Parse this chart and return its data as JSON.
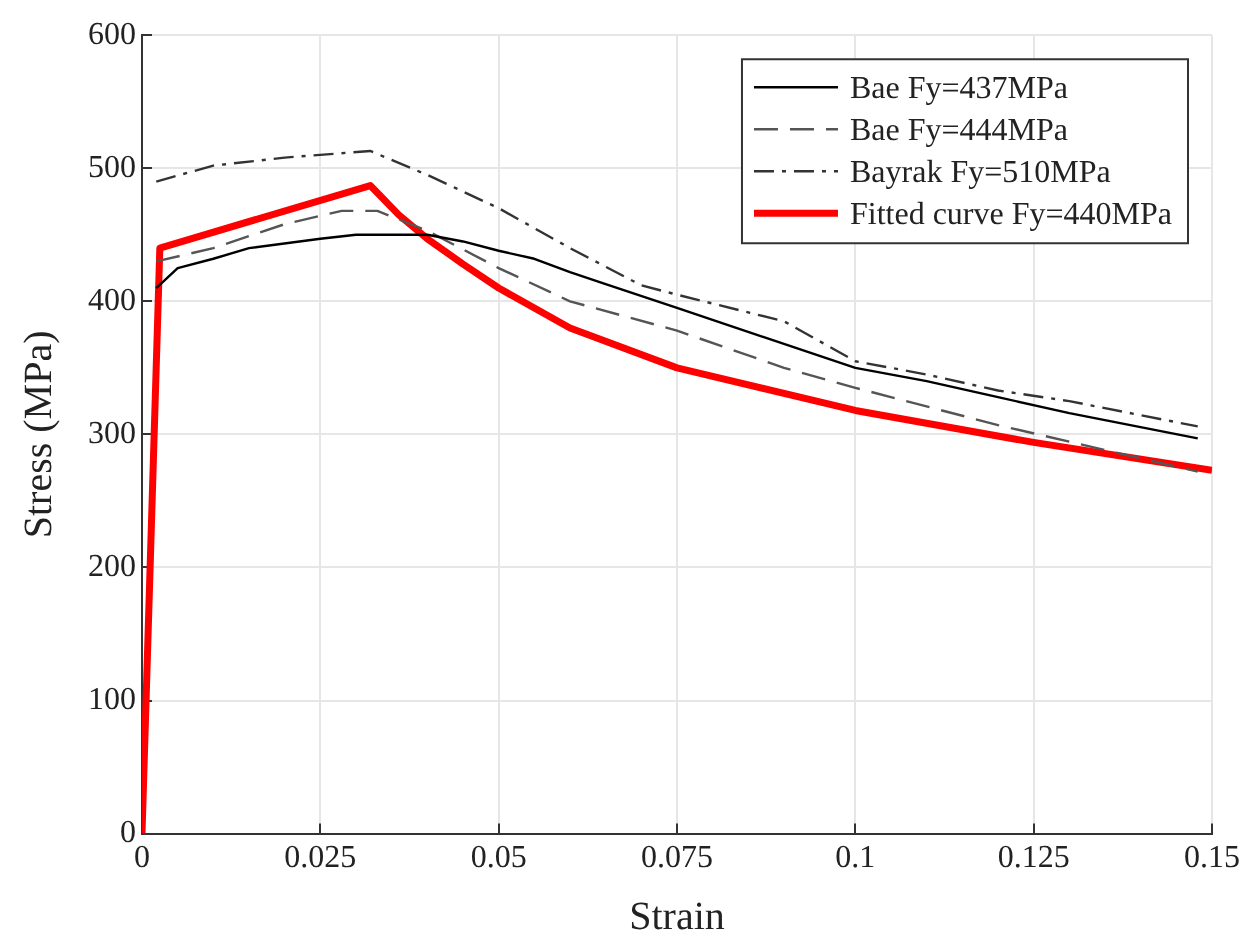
{
  "chart_data": {
    "type": "line",
    "xlabel": "Strain",
    "ylabel": "Stress (MPa)",
    "xlim": [
      0,
      0.15
    ],
    "xticks": [
      0,
      0.025,
      0.05,
      0.075,
      0.1,
      0.125,
      0.15
    ],
    "ylim": [
      0,
      600
    ],
    "yticks": [
      0,
      100,
      200,
      300,
      400,
      500,
      600
    ],
    "grid": true,
    "legend": "top right",
    "marker": "none",
    "series": [
      {
        "name": "Bae Fy=437MPa",
        "color": "#000000",
        "line_style": "solid",
        "x": [
          0.002,
          0.005,
          0.01,
          0.015,
          0.025,
          0.03,
          0.04,
          0.045,
          0.05,
          0.055,
          0.06,
          0.065,
          0.075,
          0.1,
          0.11,
          0.12,
          0.13,
          0.148
        ],
        "values": [
          410,
          425,
          432,
          440,
          447,
          450,
          450,
          445,
          438,
          432,
          422,
          413,
          395,
          350,
          340,
          328,
          316,
          297
        ]
      },
      {
        "name": "Bae Fy=444MPa",
        "color": "#555555",
        "line_style": "dashed",
        "x": [
          0.002,
          0.01,
          0.02,
          0.028,
          0.033,
          0.04,
          0.05,
          0.06,
          0.075,
          0.09,
          0.1,
          0.12,
          0.148
        ],
        "values": [
          430,
          440,
          458,
          468,
          468,
          453,
          425,
          400,
          378,
          350,
          335,
          307,
          272
        ]
      },
      {
        "name": "Bayrak Fy=510MPa",
        "color": "#333333",
        "line_style": "dashdot",
        "x": [
          0.002,
          0.01,
          0.02,
          0.032,
          0.04,
          0.05,
          0.06,
          0.07,
          0.075,
          0.09,
          0.1,
          0.11,
          0.12,
          0.13,
          0.148
        ],
        "values": [
          490,
          502,
          508,
          513,
          495,
          470,
          440,
          412,
          405,
          385,
          355,
          345,
          333,
          325,
          306
        ]
      },
      {
        "name": "Fitted curve Fy=440MPa",
        "color": "#ff0000",
        "line_style": "solid",
        "x": [
          0,
          0.0025,
          0.032,
          0.036,
          0.04,
          0.045,
          0.05,
          0.06,
          0.075,
          0.1,
          0.125,
          0.15
        ],
        "values": [
          0,
          440,
          487,
          465,
          447,
          428,
          410,
          380,
          350,
          318,
          294,
          273
        ]
      }
    ]
  }
}
